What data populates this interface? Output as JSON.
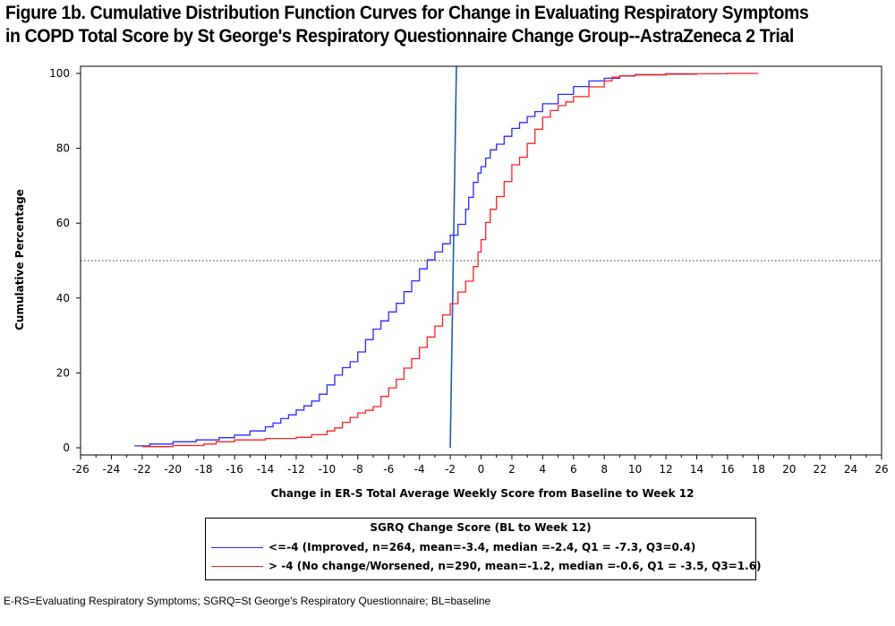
{
  "title_lines": [
    "Figure 1b. Cumulative Distribution Function Curves for Change in Evaluating Respiratory Symptoms",
    "in COPD Total Score by St George's Respiratory Questionnaire Change Group--AstraZeneca 2 Trial"
  ],
  "footnote": "E-RS=Evaluating Respiratory Symptoms; SGRQ=St George's Respiratory Questionnaire; BL=baseline",
  "colors": {
    "improved": "#2a2aff",
    "worsened": "#ff2020",
    "reference_line": "#1f5fa8"
  },
  "chart_data": {
    "type": "line",
    "xlabel": "Change in ER-S Total Average Weekly Score from Baseline to Week 12",
    "ylabel": "Cumulative Percentage",
    "xlim": [
      -26,
      26
    ],
    "ylim": [
      0,
      100
    ],
    "xticks": [
      -26,
      -24,
      -22,
      -20,
      -18,
      -16,
      -14,
      -12,
      -10,
      -8,
      -6,
      -4,
      -2,
      0,
      2,
      4,
      6,
      8,
      10,
      12,
      14,
      16,
      18,
      20,
      22,
      24,
      26
    ],
    "yticks": [
      0,
      20,
      40,
      60,
      80,
      100
    ],
    "reference_lines": [
      {
        "orientation": "horizontal",
        "y": 50,
        "style": "dotted"
      },
      {
        "orientation": "near-vertical",
        "from": [
          -2.0,
          0
        ],
        "to": [
          -1.6,
          100
        ]
      }
    ],
    "legend": {
      "title": "SGRQ Change Score (BL to Week 12)",
      "placement": "bottom"
    },
    "series": [
      {
        "name": "<=-4 (Improved, n=264, mean=-3.4, median =-2.4, Q1 = -7.3, Q3=0.4)",
        "color": "#2a2aff",
        "x": [
          -22.5,
          -21.5,
          -20,
          -18.5,
          -17,
          -16,
          -15,
          -14,
          -13.5,
          -13,
          -12.5,
          -12,
          -11.5,
          -11,
          -10.5,
          -10,
          -9.5,
          -9,
          -8.5,
          -8,
          -7.5,
          -7,
          -6.5,
          -6,
          -5.5,
          -5,
          -4.5,
          -4,
          -3.5,
          -3,
          -2.5,
          -2,
          -1.5,
          -1,
          -0.8,
          -0.5,
          -0.2,
          0,
          0.3,
          0.6,
          1,
          1.5,
          2,
          2.5,
          3,
          3.5,
          4,
          5,
          6,
          7,
          8,
          9,
          10,
          12,
          14
        ],
        "y": [
          0.5,
          1,
          1.6,
          2.1,
          2.7,
          3.4,
          4.5,
          5.6,
          6.6,
          7.8,
          8.8,
          10.1,
          11.2,
          12.5,
          14.3,
          16.8,
          19.4,
          21.4,
          23,
          25.6,
          28.9,
          31.7,
          33.9,
          36.3,
          38.6,
          41.7,
          44.6,
          47.8,
          50.2,
          52.3,
          54.5,
          56.8,
          59.7,
          63.7,
          66.9,
          70.9,
          73.4,
          75.1,
          77.4,
          79.6,
          81.1,
          83.2,
          85.3,
          86.9,
          88.5,
          89.8,
          91.9,
          94.4,
          96.5,
          98,
          98.7,
          99.3,
          99.7,
          99.9,
          100
        ]
      },
      {
        "name": "> -4 (No change/Worsened, n=290, mean=-1.2, median =-0.6, Q1 = -3.5, Q3=1.6)",
        "color": "#ff2020",
        "x": [
          -22,
          -20,
          -18,
          -17.2,
          -16,
          -14,
          -12,
          -11,
          -10,
          -9.5,
          -9,
          -8.5,
          -8,
          -7.5,
          -7,
          -6.5,
          -6,
          -5.5,
          -5,
          -4.5,
          -4,
          -3.5,
          -3,
          -2.5,
          -2,
          -1.5,
          -1,
          -0.5,
          -0.2,
          0,
          0.3,
          0.6,
          1,
          1.5,
          2,
          2.5,
          3,
          3.5,
          4,
          4.5,
          5,
          5.5,
          6,
          7,
          8,
          8.5,
          9,
          10,
          12,
          14,
          16,
          18
        ],
        "y": [
          0.3,
          0.6,
          1,
          1.6,
          2.1,
          2.5,
          2.8,
          3.5,
          4.5,
          5.3,
          6.8,
          8.1,
          9.3,
          10,
          11,
          13.7,
          16,
          18.3,
          21.3,
          23.8,
          26.8,
          29.6,
          32.5,
          35.5,
          38.5,
          41.6,
          44.5,
          48.4,
          52.3,
          55.6,
          60.2,
          63.7,
          67.1,
          71.1,
          75.6,
          77.6,
          81.3,
          85.1,
          88.3,
          90.1,
          91.4,
          92.4,
          93.8,
          96.4,
          98,
          99,
          99.4,
          99.6,
          99.8,
          99.9,
          100,
          100
        ]
      }
    ]
  }
}
